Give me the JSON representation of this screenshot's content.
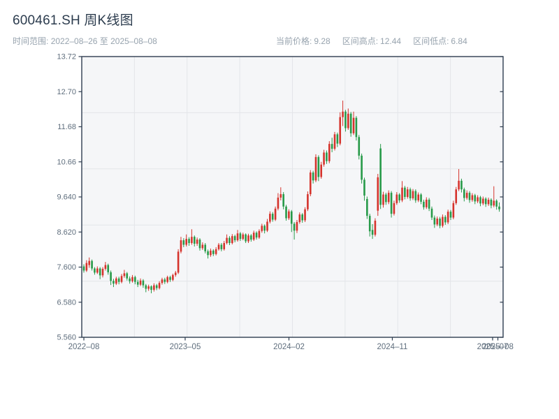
{
  "header": {
    "title": "600461.SH 周K线图",
    "time_range_label": "时间范围:",
    "time_range_value": "2022–08–26 至 2025–08–08",
    "stats": {
      "current": {
        "label": "当前价格:",
        "value": "9.28"
      },
      "high": {
        "label": "区间高点:",
        "value": "12.44"
      },
      "low": {
        "label": "区间低点:",
        "value": "6.84"
      }
    }
  },
  "chart_data": {
    "type": "candlestick",
    "title": "600461.SH 周K线图",
    "frequency": "weekly",
    "start_date": "2022-08-26",
    "end_date": "2025-08-08",
    "last_price": 9.28,
    "range_high": 12.44,
    "range_low": 6.84,
    "ylim": [
      5.56,
      13.72
    ],
    "y_ticks": [
      {
        "label": "13.72",
        "value": 13.72
      },
      {
        "label": "12.70",
        "value": 12.7
      },
      {
        "label": "11.68",
        "value": 11.68
      },
      {
        "label": "10.66",
        "value": 10.66
      },
      {
        "label": "9.640",
        "value": 9.64
      },
      {
        "label": "8.620",
        "value": 8.62
      },
      {
        "label": "7.600",
        "value": 7.6
      },
      {
        "label": "6.580",
        "value": 6.58
      },
      {
        "label": "5.560",
        "value": 5.56
      }
    ],
    "x_ticks": [
      {
        "label": "2022–08",
        "f": 0.005
      },
      {
        "label": "2023–05",
        "f": 0.2454
      },
      {
        "label": "2024–02",
        "f": 0.4917
      },
      {
        "label": "2024–11",
        "f": 0.7371
      },
      {
        "label": "2025–07",
        "f": 0.9751
      },
      {
        "label": "2025–08",
        "f": 0.9876
      }
    ],
    "grid": {
      "h_divisions": 5,
      "v_divisions": 8
    },
    "colors": {
      "up": "#d5332c",
      "down": "#279a49",
      "plot_bg": "#f5f6f8",
      "grid": "#e3e5e9",
      "spine": "#2e3d4f",
      "tick_label": "#5f6e7d"
    },
    "candles_ohlc": [
      [
        7.62,
        7.68,
        7.44,
        7.5
      ],
      [
        7.5,
        7.8,
        7.46,
        7.72
      ],
      [
        7.66,
        7.88,
        7.58,
        7.78
      ],
      [
        7.78,
        7.82,
        7.5,
        7.56
      ],
      [
        7.56,
        7.6,
        7.38,
        7.44
      ],
      [
        7.44,
        7.62,
        7.4,
        7.56
      ],
      [
        7.56,
        7.6,
        7.25,
        7.36
      ],
      [
        7.36,
        7.6,
        7.3,
        7.55
      ],
      [
        7.55,
        7.75,
        7.5,
        7.66
      ],
      [
        7.66,
        7.7,
        7.38,
        7.45
      ],
      [
        7.45,
        7.5,
        7.08,
        7.2
      ],
      [
        7.2,
        7.26,
        7.02,
        7.12
      ],
      [
        7.12,
        7.32,
        7.08,
        7.27
      ],
      [
        7.27,
        7.32,
        7.1,
        7.17
      ],
      [
        7.17,
        7.4,
        7.13,
        7.34
      ],
      [
        7.34,
        7.52,
        7.29,
        7.42
      ],
      [
        7.42,
        7.46,
        7.21,
        7.27
      ],
      [
        7.27,
        7.33,
        7.12,
        7.19
      ],
      [
        7.19,
        7.37,
        7.15,
        7.31
      ],
      [
        7.31,
        7.35,
        7.1,
        7.17
      ],
      [
        7.17,
        7.23,
        7.02,
        7.09
      ],
      [
        7.09,
        7.27,
        7.05,
        7.21
      ],
      [
        7.21,
        7.25,
        7.0,
        7.07
      ],
      [
        7.07,
        7.11,
        6.87,
        6.97
      ],
      [
        6.97,
        7.09,
        6.91,
        7.04
      ],
      [
        7.04,
        7.07,
        6.84,
        6.94
      ],
      [
        6.94,
        7.13,
        6.89,
        7.07
      ],
      [
        7.07,
        7.11,
        6.93,
        6.99
      ],
      [
        6.99,
        7.19,
        6.95,
        7.14
      ],
      [
        7.14,
        7.29,
        7.09,
        7.24
      ],
      [
        7.24,
        7.29,
        7.11,
        7.17
      ],
      [
        7.17,
        7.35,
        7.13,
        7.31
      ],
      [
        7.31,
        7.35,
        7.17,
        7.23
      ],
      [
        7.23,
        7.41,
        7.19,
        7.37
      ],
      [
        7.37,
        7.49,
        7.32,
        7.44
      ],
      [
        7.44,
        8.12,
        7.4,
        8.05
      ],
      [
        8.05,
        8.48,
        8.0,
        8.38
      ],
      [
        8.38,
        8.44,
        8.18,
        8.25
      ],
      [
        8.25,
        8.55,
        8.2,
        8.42
      ],
      [
        8.42,
        8.47,
        8.22,
        8.3
      ],
      [
        8.3,
        8.7,
        8.25,
        8.48
      ],
      [
        8.48,
        8.52,
        8.2,
        8.28
      ],
      [
        8.28,
        8.46,
        8.22,
        8.4
      ],
      [
        8.4,
        8.44,
        8.08,
        8.15
      ],
      [
        8.15,
        8.32,
        8.1,
        8.25
      ],
      [
        8.25,
        8.3,
        8.0,
        8.06
      ],
      [
        8.06,
        8.11,
        7.85,
        7.95
      ],
      [
        7.95,
        8.14,
        7.9,
        8.08
      ],
      [
        8.08,
        8.12,
        7.92,
        7.98
      ],
      [
        7.98,
        8.18,
        7.94,
        8.12
      ],
      [
        8.12,
        8.3,
        8.08,
        8.25
      ],
      [
        8.25,
        8.3,
        8.06,
        8.12
      ],
      [
        8.12,
        8.36,
        8.08,
        8.3
      ],
      [
        8.3,
        8.55,
        8.26,
        8.45
      ],
      [
        8.45,
        8.5,
        8.24,
        8.3
      ],
      [
        8.3,
        8.56,
        8.26,
        8.5
      ],
      [
        8.5,
        8.54,
        8.32,
        8.38
      ],
      [
        8.38,
        8.68,
        8.34,
        8.58
      ],
      [
        8.58,
        8.62,
        8.36,
        8.42
      ],
      [
        8.42,
        8.6,
        8.38,
        8.55
      ],
      [
        8.55,
        8.58,
        8.3,
        8.35
      ],
      [
        8.35,
        8.57,
        8.3,
        8.52
      ],
      [
        8.52,
        8.56,
        8.34,
        8.4
      ],
      [
        8.4,
        8.66,
        8.36,
        8.6
      ],
      [
        8.6,
        8.64,
        8.4,
        8.46
      ],
      [
        8.46,
        8.7,
        8.42,
        8.65
      ],
      [
        8.65,
        8.86,
        8.6,
        8.8
      ],
      [
        8.8,
        8.84,
        8.58,
        8.66
      ],
      [
        8.66,
        9.0,
        8.62,
        8.92
      ],
      [
        8.92,
        9.22,
        8.87,
        9.15
      ],
      [
        9.15,
        9.2,
        8.92,
        8.98
      ],
      [
        8.98,
        9.36,
        8.94,
        9.3
      ],
      [
        9.3,
        9.75,
        9.25,
        9.62
      ],
      [
        9.62,
        9.92,
        9.54,
        9.72
      ],
      [
        9.72,
        9.78,
        9.28,
        9.36
      ],
      [
        9.36,
        9.41,
        8.95,
        9.02
      ],
      [
        9.02,
        9.28,
        8.97,
        9.22
      ],
      [
        9.22,
        9.26,
        8.62,
        8.86
      ],
      [
        8.86,
        8.91,
        8.4,
        8.66
      ],
      [
        8.66,
        8.97,
        8.59,
        8.91
      ],
      [
        8.91,
        9.19,
        8.86,
        9.13
      ],
      [
        9.13,
        9.17,
        8.89,
        8.96
      ],
      [
        8.96,
        9.34,
        8.91,
        9.28
      ],
      [
        9.28,
        9.8,
        9.23,
        9.72
      ],
      [
        9.72,
        10.42,
        9.66,
        10.35
      ],
      [
        10.35,
        10.4,
        10.03,
        10.12
      ],
      [
        10.12,
        10.88,
        10.07,
        10.8
      ],
      [
        10.8,
        10.85,
        10.1,
        10.22
      ],
      [
        10.22,
        10.66,
        10.17,
        10.58
      ],
      [
        10.58,
        11.01,
        10.52,
        10.93
      ],
      [
        10.93,
        10.99,
        10.6,
        10.68
      ],
      [
        10.68,
        11.26,
        10.62,
        11.18
      ],
      [
        11.18,
        11.36,
        10.94,
        11.04
      ],
      [
        11.04,
        11.53,
        10.99,
        11.46
      ],
      [
        11.46,
        11.51,
        11.09,
        11.19
      ],
      [
        11.19,
        12.1,
        11.14,
        11.96
      ],
      [
        11.96,
        12.44,
        11.7,
        12.12
      ],
      [
        12.12,
        12.17,
        11.54,
        11.64
      ],
      [
        11.64,
        12.21,
        11.59,
        12.06
      ],
      [
        12.06,
        12.11,
        11.39,
        11.49
      ],
      [
        11.49,
        12.12,
        11.44,
        11.94
      ],
      [
        11.94,
        11.99,
        11.28,
        11.38
      ],
      [
        11.38,
        11.44,
        10.73,
        10.84
      ],
      [
        10.84,
        10.9,
        10.03,
        10.14
      ],
      [
        10.14,
        10.2,
        9.53,
        9.68
      ],
      [
        9.58,
        9.65,
        9.0,
        9.09
      ],
      [
        9.09,
        9.15,
        8.49,
        8.64
      ],
      [
        8.68,
        8.85,
        8.42,
        8.54
      ],
      [
        8.54,
        9.02,
        8.49,
        8.95
      ],
      [
        9.24,
        10.31,
        9.09,
        10.21
      ],
      [
        11.05,
        11.18,
        9.29,
        9.41
      ],
      [
        9.41,
        9.79,
        9.33,
        9.71
      ],
      [
        9.71,
        9.76,
        9.41,
        9.49
      ],
      [
        9.49,
        9.83,
        9.43,
        9.76
      ],
      [
        9.76,
        9.81,
        9.04,
        9.15
      ],
      [
        9.15,
        9.53,
        9.1,
        9.46
      ],
      [
        9.46,
        9.78,
        9.41,
        9.71
      ],
      [
        9.71,
        9.75,
        9.47,
        9.54
      ],
      [
        9.54,
        10.1,
        9.49,
        9.91
      ],
      [
        9.91,
        9.96,
        9.57,
        9.64
      ],
      [
        9.64,
        9.93,
        9.59,
        9.86
      ],
      [
        9.86,
        9.91,
        9.53,
        9.6
      ],
      [
        9.6,
        9.87,
        9.55,
        9.81
      ],
      [
        9.81,
        9.86,
        9.47,
        9.54
      ],
      [
        9.54,
        9.77,
        9.49,
        9.71
      ],
      [
        9.71,
        9.75,
        9.43,
        9.5
      ],
      [
        9.5,
        9.56,
        9.27,
        9.34
      ],
      [
        9.34,
        9.63,
        9.29,
        9.56
      ],
      [
        9.56,
        9.61,
        9.23,
        9.3
      ],
      [
        9.3,
        9.36,
        8.97,
        9.04
      ],
      [
        9.04,
        9.1,
        8.74,
        8.84
      ],
      [
        8.84,
        9.07,
        8.79,
        9.01
      ],
      [
        9.01,
        9.06,
        8.73,
        8.8
      ],
      [
        8.8,
        9.13,
        8.75,
        9.06
      ],
      [
        9.06,
        9.11,
        8.83,
        8.9
      ],
      [
        8.9,
        9.27,
        8.85,
        9.21
      ],
      [
        9.21,
        9.26,
        8.97,
        9.04
      ],
      [
        9.04,
        9.53,
        8.99,
        9.46
      ],
      [
        9.46,
        9.93,
        9.41,
        9.86
      ],
      [
        9.86,
        10.45,
        9.81,
        10.11
      ],
      [
        10.11,
        10.17,
        9.77,
        9.86
      ],
      [
        9.86,
        9.91,
        9.51,
        9.61
      ],
      [
        9.61,
        9.83,
        9.56,
        9.76
      ],
      [
        9.76,
        9.81,
        9.47,
        9.55
      ],
      [
        9.55,
        9.75,
        9.5,
        9.69
      ],
      [
        9.69,
        9.73,
        9.43,
        9.51
      ],
      [
        9.51,
        9.69,
        9.46,
        9.63
      ],
      [
        9.63,
        9.67,
        9.37,
        9.45
      ],
      [
        9.45,
        9.65,
        9.4,
        9.59
      ],
      [
        9.59,
        9.63,
        9.35,
        9.43
      ],
      [
        9.43,
        9.62,
        9.38,
        9.56
      ],
      [
        9.56,
        9.6,
        9.31,
        9.39
      ],
      [
        9.39,
        9.95,
        9.34,
        9.53
      ],
      [
        9.53,
        9.57,
        9.27,
        9.36
      ],
      [
        9.36,
        9.48,
        9.21,
        9.28
      ]
    ]
  }
}
